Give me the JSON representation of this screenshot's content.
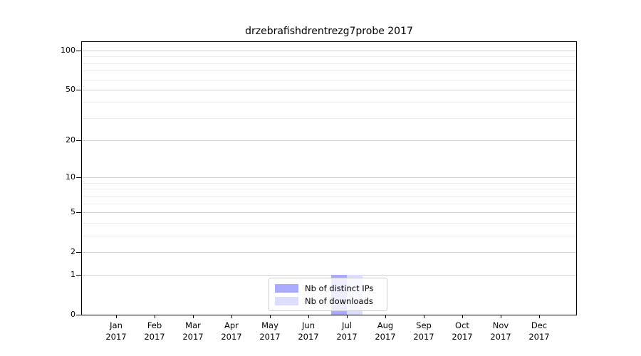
{
  "title": "drzebrafishdrentrezg7probe 2017",
  "chart_data": {
    "type": "bar",
    "title": "drzebrafishdrentrezg7probe 2017",
    "categories": [
      {
        "month": "Jan",
        "year": "2017"
      },
      {
        "month": "Feb",
        "year": "2017"
      },
      {
        "month": "Mar",
        "year": "2017"
      },
      {
        "month": "Apr",
        "year": "2017"
      },
      {
        "month": "May",
        "year": "2017"
      },
      {
        "month": "Jun",
        "year": "2017"
      },
      {
        "month": "Jul",
        "year": "2017"
      },
      {
        "month": "Aug",
        "year": "2017"
      },
      {
        "month": "Sep",
        "year": "2017"
      },
      {
        "month": "Oct",
        "year": "2017"
      },
      {
        "month": "Nov",
        "year": "2017"
      },
      {
        "month": "Dec",
        "year": "2017"
      }
    ],
    "series": [
      {
        "name": "Nb of distinct IPs",
        "color": "#aaaaff",
        "values": [
          0,
          0,
          0,
          0,
          0,
          0,
          1,
          0,
          0,
          0,
          0,
          0
        ]
      },
      {
        "name": "Nb of downloads",
        "color": "#ddddff",
        "values": [
          0,
          0,
          0,
          0,
          0,
          0,
          1,
          0,
          0,
          0,
          0,
          0
        ]
      }
    ],
    "y_axis": {
      "scale": "log1p",
      "ticks": [
        0,
        1,
        2,
        5,
        10,
        20,
        50,
        100
      ],
      "minor_ticks": [
        3,
        4,
        6,
        7,
        8,
        9,
        30,
        40,
        60,
        70,
        80,
        90
      ],
      "ylim": [
        0,
        117
      ]
    },
    "legend": {
      "position": "lower center"
    },
    "grid": "horizontal",
    "colors": {
      "major_grid": "#d2d2d2",
      "minor_grid": "#ececec",
      "axis": "#000000",
      "legend_border": "#cccccc"
    }
  }
}
